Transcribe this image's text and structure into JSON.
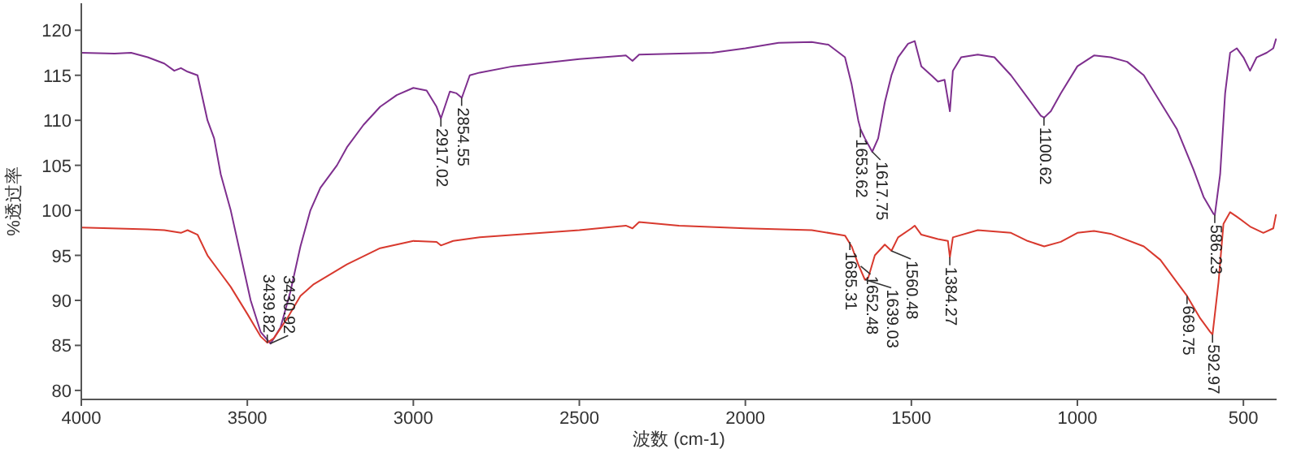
{
  "chart_data": {
    "type": "line",
    "xlabel": "波数 (cm-1)",
    "ylabel": "%透过率",
    "xlim": [
      4000,
      400
    ],
    "xticks": [
      4000,
      3500,
      3000,
      2500,
      2000,
      1500,
      1000,
      500
    ],
    "ylim": [
      79,
      123
    ],
    "yticks": [
      80,
      85,
      90,
      95,
      100,
      105,
      110,
      115,
      120
    ],
    "grid": false,
    "series": [
      {
        "color": "#7e2f8e",
        "x": [
          4000,
          3900,
          3850,
          3800,
          3750,
          3720,
          3700,
          3680,
          3650,
          3620,
          3600,
          3580,
          3550,
          3520,
          3490,
          3460,
          3430,
          3400,
          3370,
          3340,
          3310,
          3280,
          3230,
          3200,
          3150,
          3100,
          3050,
          3000,
          2960,
          2930,
          2917,
          2890,
          2870,
          2854,
          2830,
          2800,
          2700,
          2500,
          2360,
          2340,
          2320,
          2200,
          2100,
          2000,
          1900,
          1800,
          1750,
          1700,
          1680,
          1660,
          1653,
          1640,
          1618,
          1600,
          1580,
          1560,
          1540,
          1510,
          1490,
          1470,
          1440,
          1420,
          1400,
          1384,
          1375,
          1350,
          1300,
          1250,
          1200,
          1150,
          1110,
          1100,
          1080,
          1050,
          1000,
          950,
          900,
          850,
          800,
          750,
          700,
          650,
          620,
          590,
          586,
          570,
          555,
          540,
          520,
          500,
          480,
          460,
          430,
          410,
          402
        ],
        "values": [
          117.5,
          117.4,
          117.5,
          117,
          116.3,
          115.5,
          115.8,
          115.4,
          115,
          110,
          108,
          104,
          100,
          95,
          90,
          86.5,
          85.2,
          87,
          91,
          96,
          100,
          102.5,
          105,
          107,
          109.5,
          111.5,
          112.8,
          113.6,
          113.3,
          111.5,
          110.2,
          113.2,
          113,
          112.5,
          115,
          115.3,
          116,
          116.8,
          117.2,
          116.6,
          117.3,
          117.4,
          117.5,
          118,
          118.6,
          118.7,
          118.4,
          117,
          114,
          110,
          109,
          108,
          106.5,
          108,
          112,
          115,
          117,
          118.5,
          118.8,
          116,
          115,
          114.3,
          114.5,
          111,
          115.5,
          117,
          117.3,
          117,
          115,
          112.5,
          110.5,
          110.3,
          111,
          113,
          116,
          117.2,
          117,
          116.5,
          115,
          112,
          109,
          104.5,
          101.5,
          99.6,
          99.5,
          104,
          113,
          117.5,
          118,
          117,
          115.5,
          117,
          117.5,
          118,
          119
        ]
      },
      {
        "color": "#d8392e",
        "x": [
          4000,
          3800,
          3750,
          3700,
          3680,
          3650,
          3620,
          3580,
          3550,
          3500,
          3460,
          3440,
          3420,
          3380,
          3340,
          3300,
          3200,
          3100,
          3000,
          2930,
          2917,
          2880,
          2800,
          2500,
          2360,
          2340,
          2320,
          2200,
          2000,
          1800,
          1700,
          1680,
          1660,
          1640,
          1630,
          1610,
          1580,
          1560,
          1540,
          1500,
          1490,
          1470,
          1420,
          1390,
          1384,
          1375,
          1300,
          1200,
          1150,
          1100,
          1050,
          1000,
          950,
          900,
          800,
          750,
          700,
          670,
          630,
          600,
          593,
          575,
          560,
          540,
          520,
          480,
          440,
          410,
          402
        ],
        "values": [
          98.1,
          97.9,
          97.8,
          97.5,
          97.8,
          97.3,
          95,
          93,
          91.5,
          88.5,
          86,
          85.3,
          85.8,
          88,
          90.5,
          91.8,
          94,
          95.8,
          96.6,
          96.5,
          96.1,
          96.6,
          97,
          97.8,
          98.3,
          98,
          98.7,
          98.3,
          98,
          97.8,
          97.2,
          96,
          94,
          92.3,
          92.5,
          95,
          96.2,
          95.5,
          97,
          98,
          98.3,
          97.3,
          96.8,
          96.6,
          94.8,
          97,
          97.8,
          97.5,
          96.6,
          96,
          96.5,
          97.5,
          97.7,
          97.4,
          96,
          94.5,
          92,
          90.5,
          88,
          86.5,
          86.2,
          92,
          98.5,
          99.8,
          99.3,
          98.2,
          97.5,
          98,
          99.5
        ]
      }
    ],
    "annotations": [
      {
        "text": "3430.92",
        "x": 3430.92,
        "y": 85.2
      },
      {
        "text": "3439.82",
        "x": 3439.82,
        "y": 85.3
      },
      {
        "text": "2917.02",
        "x": 2917.02,
        "y": 110.2
      },
      {
        "text": "2854.55",
        "x": 2854.55,
        "y": 112.5
      },
      {
        "text": "1653.62",
        "x": 1653.62,
        "y": 109
      },
      {
        "text": "1617.75",
        "x": 1617.75,
        "y": 106.5
      },
      {
        "text": "1100.62",
        "x": 1100.62,
        "y": 110.3
      },
      {
        "text": "586.23",
        "x": 586.23,
        "y": 99.5
      },
      {
        "text": "1685.31",
        "x": 1685.31,
        "y": 96.5
      },
      {
        "text": "1652.48",
        "x": 1652.48,
        "y": 93.8
      },
      {
        "text": "1639.03",
        "x": 1639.03,
        "y": 92.3
      },
      {
        "text": "1560.48",
        "x": 1560.48,
        "y": 95.5
      },
      {
        "text": "1384.27",
        "x": 1384.27,
        "y": 94.8
      },
      {
        "text": "669.75",
        "x": 669.75,
        "y": 90.5
      },
      {
        "text": "592.97",
        "x": 592.97,
        "y": 86.2
      }
    ]
  }
}
